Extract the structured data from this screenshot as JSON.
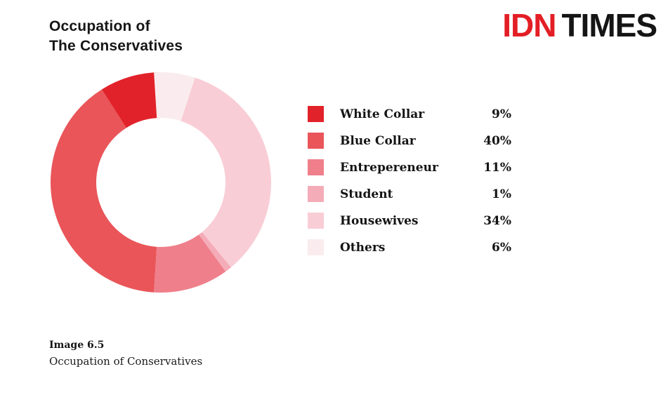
{
  "page": {
    "background": "#ffffff"
  },
  "header": {
    "title_line1": "Occupation of",
    "title_line2": "The Conservatives",
    "logo": {
      "part1": "IDN",
      "part2": "TIMES",
      "part1_color": "#e31e25",
      "part2_color": "#151515"
    }
  },
  "chart_data": {
    "type": "pie",
    "subtype": "donut",
    "title": "Occupation of The Conservatives",
    "unit": "%",
    "start_angle_deg": 0,
    "direction": "counterclockwise",
    "inner_radius_ratio": 0.586,
    "legend_position": "right",
    "segments": [
      {
        "label": "White Collar",
        "value": 9,
        "percent_label": "9%",
        "color": "#e2222a"
      },
      {
        "label": "Blue Collar",
        "value": 40,
        "percent_label": "40%",
        "color": "#e95559"
      },
      {
        "label": "Entrepereneur",
        "value": 11,
        "percent_label": "11%",
        "color": "#ef7f8b"
      },
      {
        "label": "Student",
        "value": 1,
        "percent_label": "1%",
        "color": "#f4acb8"
      },
      {
        "label": "Housewives",
        "value": 34,
        "percent_label": "34%",
        "color": "#f9cdd6"
      },
      {
        "label": "Others",
        "value": 6,
        "percent_label": "6%",
        "color": "#faecee"
      }
    ]
  },
  "caption": {
    "label": "Image 6.5",
    "text": "Occupation of Conservatives"
  }
}
